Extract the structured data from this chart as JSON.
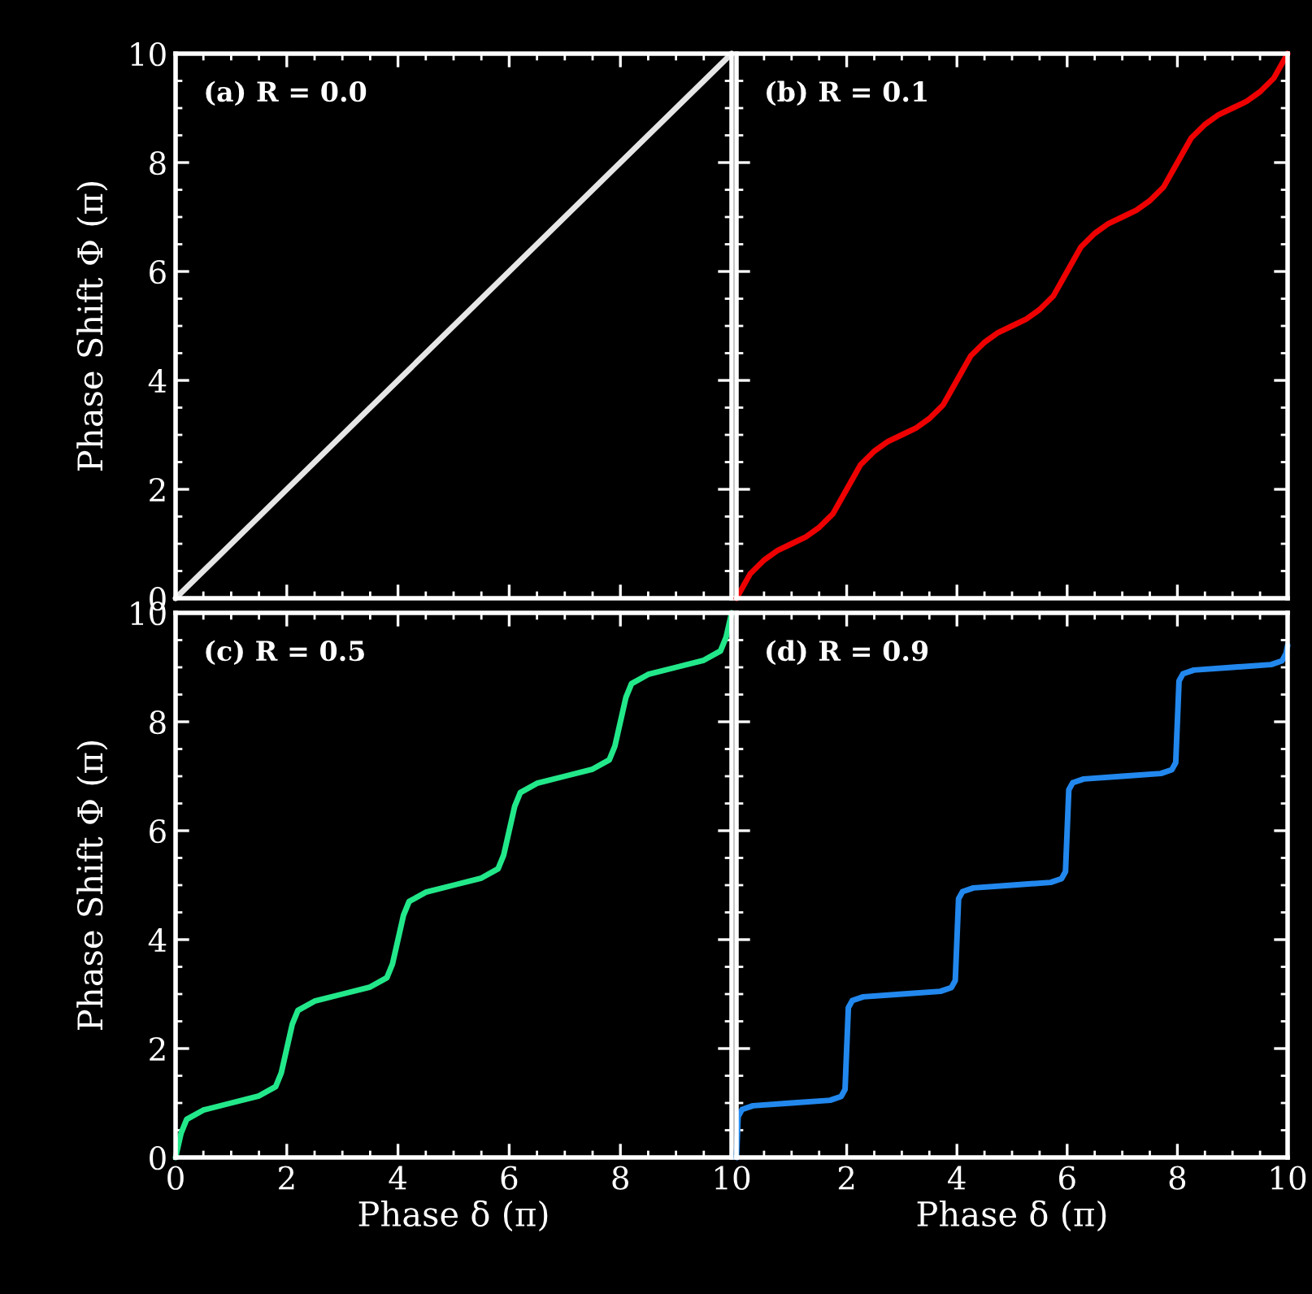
{
  "chart_data": [
    {
      "type": "line",
      "annotations": [
        "(a) R = 0.0"
      ],
      "ylabel": "Phase Shift Φ (π)",
      "xlim": [
        0,
        10
      ],
      "ylim": [
        0,
        10
      ],
      "xticks": [
        0,
        2,
        4,
        6,
        8,
        10
      ],
      "yticks": [
        0,
        2,
        4,
        6,
        8,
        10
      ],
      "tick_labels": "y",
      "color": "#e6e6e6",
      "x": [
        0,
        10
      ],
      "values": [
        0,
        10
      ]
    },
    {
      "type": "line",
      "annotations": [
        "(b) R = 0.1"
      ],
      "xlim": [
        0,
        10
      ],
      "ylim": [
        0,
        10
      ],
      "xticks": [
        0,
        2,
        4,
        6,
        8,
        10
      ],
      "yticks": [
        0,
        2,
        4,
        6,
        8,
        10
      ],
      "tick_labels": false,
      "color": "#ee0000",
      "x": [
        0,
        0.25,
        0.5,
        0.75,
        1,
        1.25,
        1.5,
        1.75,
        2,
        2.25,
        2.5,
        2.75,
        3,
        3.25,
        3.5,
        3.75,
        4,
        4.25,
        4.5,
        4.75,
        5,
        5.25,
        5.5,
        5.75,
        6,
        6.25,
        6.5,
        6.75,
        7,
        7.25,
        7.5,
        7.75,
        8,
        8.25,
        8.5,
        8.75,
        9,
        9.25,
        9.5,
        9.75,
        10
      ],
      "values": [
        0,
        0.45,
        0.7,
        0.88,
        1.0,
        1.12,
        1.3,
        1.55,
        2.0,
        2.45,
        2.7,
        2.88,
        3.0,
        3.12,
        3.3,
        3.55,
        4.0,
        4.45,
        4.7,
        4.88,
        5.0,
        5.12,
        5.3,
        5.55,
        6.0,
        6.45,
        6.7,
        6.88,
        7.0,
        7.12,
        7.3,
        7.55,
        8.0,
        8.45,
        8.7,
        8.88,
        9.0,
        9.12,
        9.3,
        9.55,
        10.0
      ]
    },
    {
      "type": "line",
      "annotations": [
        "(c) R = 0.5"
      ],
      "xlabel": "Phase δ (π)",
      "ylabel": "Phase Shift Φ (π)",
      "xlim": [
        0,
        10
      ],
      "ylim": [
        0,
        10
      ],
      "xticks": [
        0,
        2,
        4,
        6,
        8,
        10
      ],
      "yticks": [
        0,
        2,
        4,
        6,
        8,
        10
      ],
      "color": "#22e88a",
      "x": [
        0,
        0.1,
        0.2,
        0.5,
        1,
        1.5,
        1.8,
        1.9,
        2,
        2.1,
        2.2,
        2.5,
        3,
        3.5,
        3.8,
        3.9,
        4,
        4.1,
        4.2,
        4.5,
        5,
        5.5,
        5.8,
        5.9,
        6,
        6.1,
        6.2,
        6.5,
        7,
        7.5,
        7.8,
        7.9,
        8,
        8.1,
        8.2,
        8.5,
        9,
        9.5,
        9.8,
        9.9,
        10
      ],
      "values": [
        0,
        0.45,
        0.7,
        0.87,
        1.0,
        1.13,
        1.3,
        1.55,
        2.0,
        2.45,
        2.7,
        2.87,
        3.0,
        3.13,
        3.3,
        3.55,
        4.0,
        4.45,
        4.7,
        4.87,
        5.0,
        5.13,
        5.3,
        5.55,
        6.0,
        6.45,
        6.7,
        6.87,
        7.0,
        7.13,
        7.3,
        7.55,
        8.0,
        8.45,
        8.7,
        8.87,
        9.0,
        9.13,
        9.3,
        9.55,
        10.0
      ]
    },
    {
      "type": "line",
      "annotations": [
        "(d) R = 0.9"
      ],
      "xlabel": "Phase δ (π)",
      "xlim": [
        0,
        10
      ],
      "ylim": [
        0,
        10
      ],
      "xticks": [
        {
          "value": 0,
          "label": null
        },
        2,
        4,
        6,
        8,
        10
      ],
      "yticks": [
        0,
        2,
        4,
        6,
        8,
        10
      ],
      "tick_labels": "x",
      "color": "#2288ee",
      "x": [
        0,
        0.03,
        0.1,
        0.3,
        1,
        1.7,
        1.9,
        1.97,
        2,
        2.03,
        2.1,
        2.3,
        3,
        3.7,
        3.9,
        3.97,
        4,
        4.03,
        4.1,
        4.3,
        5,
        5.7,
        5.9,
        5.97,
        6,
        6.03,
        6.1,
        6.3,
        7,
        7.7,
        7.9,
        7.97,
        8,
        8.03,
        8.1,
        8.3,
        9,
        9.7,
        9.9,
        9.97,
        10
      ],
      "values": [
        0,
        0.75,
        0.88,
        0.95,
        1.0,
        1.05,
        1.12,
        1.25,
        2.0,
        2.75,
        2.88,
        2.95,
        3.0,
        3.05,
        3.12,
        3.25,
        4.0,
        4.75,
        4.88,
        4.95,
        5.0,
        5.05,
        5.12,
        5.25,
        6.0,
        6.75,
        6.88,
        6.95,
        7.0,
        7.05,
        7.12,
        7.25,
        8.0,
        8.75,
        8.88,
        8.95,
        9.0,
        9.05,
        9.12,
        9.25,
        9.4
      ]
    }
  ]
}
